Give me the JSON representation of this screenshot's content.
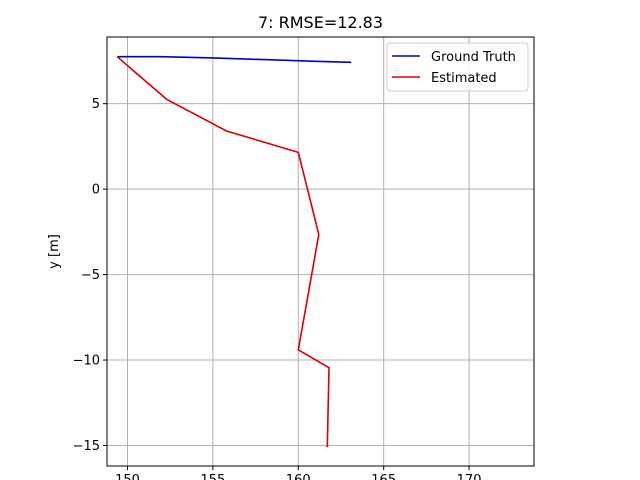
{
  "chart_data": {
    "type": "line",
    "title": "7: RMSE=12.83",
    "xlabel": "",
    "ylabel": "y [m]",
    "xlim": [
      148.8,
      173.8
    ],
    "ylim": [
      -16.2,
      8.9
    ],
    "xticks": [
      150,
      155,
      160,
      165,
      170
    ],
    "xtick_labels": [
      "150",
      "155",
      "160",
      "165",
      "170"
    ],
    "yticks": [
      5,
      0,
      -5,
      -10,
      -15
    ],
    "ytick_labels": [
      "5",
      "0",
      "−5",
      "−10",
      "−15"
    ],
    "grid": true,
    "legend_position": "top-right",
    "series": [
      {
        "name": "Ground Truth",
        "color": "#0000cc",
        "x": [
          149.4,
          152.0,
          155.0,
          158.0,
          161.0,
          163.1
        ],
        "y": [
          7.75,
          7.75,
          7.68,
          7.58,
          7.48,
          7.42
        ]
      },
      {
        "name": "Estimated",
        "color": "#dd0000",
        "x": [
          149.4,
          152.3,
          155.8,
          160.0,
          161.2,
          160.0,
          161.8,
          161.7
        ],
        "y": [
          7.75,
          5.25,
          3.4,
          2.15,
          -2.65,
          -9.4,
          -10.45,
          -15.1
        ]
      }
    ]
  }
}
